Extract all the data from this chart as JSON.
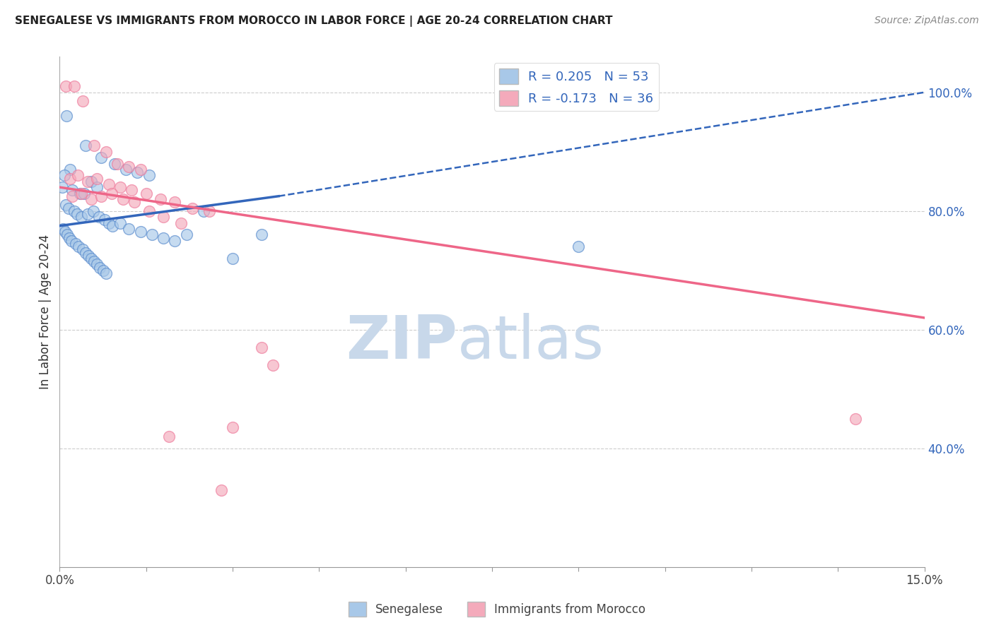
{
  "title": "SENEGALESE VS IMMIGRANTS FROM MOROCCO IN LABOR FORCE | AGE 20-24 CORRELATION CHART",
  "source": "Source: ZipAtlas.com",
  "ylabel": "In Labor Force | Age 20-24",
  "xlim": [
    0.0,
    15.0
  ],
  "ylim": [
    20.0,
    106.0
  ],
  "y_ticks_right": [
    40.0,
    60.0,
    80.0,
    100.0
  ],
  "y_tick_labels_right": [
    "40.0%",
    "60.0%",
    "80.0%",
    "100.0%"
  ],
  "x_ticks": [
    0.0,
    1.5,
    3.0,
    4.5,
    6.0,
    7.5,
    9.0,
    10.5,
    12.0,
    13.5,
    15.0
  ],
  "legend_r1": "R = 0.205",
  "legend_n1": "N = 53",
  "legend_r2": "R = -0.173",
  "legend_n2": "N = 36",
  "blue_color": "#A8C8E8",
  "pink_color": "#F4AABB",
  "blue_edge_color": "#5588CC",
  "pink_edge_color": "#EE7799",
  "blue_line_color": "#3366BB",
  "pink_line_color": "#EE6688",
  "watermark_zip": "ZIP",
  "watermark_atlas": "atlas",
  "watermark_color": "#C8D8EA",
  "blue_scatter_x": [
    0.12,
    0.45,
    0.18,
    0.08,
    0.05,
    0.22,
    0.35,
    0.55,
    0.65,
    0.42,
    0.72,
    0.95,
    1.15,
    1.35,
    1.55,
    0.1,
    0.15,
    0.25,
    0.3,
    0.38,
    0.48,
    0.58,
    0.68,
    0.78,
    0.85,
    0.92,
    1.05,
    1.2,
    1.4,
    1.6,
    1.8,
    2.0,
    2.2,
    2.5,
    0.06,
    0.09,
    0.13,
    0.17,
    0.21,
    0.28,
    0.33,
    0.4,
    0.45,
    0.5,
    0.55,
    0.6,
    0.65,
    0.7,
    0.75,
    0.8,
    3.0,
    3.5,
    9.0
  ],
  "blue_scatter_y": [
    96.0,
    91.0,
    87.0,
    86.0,
    84.0,
    83.5,
    83.0,
    85.0,
    84.0,
    83.0,
    89.0,
    88.0,
    87.0,
    86.5,
    86.0,
    81.0,
    80.5,
    80.0,
    79.5,
    79.0,
    79.5,
    80.0,
    79.0,
    78.5,
    78.0,
    77.5,
    78.0,
    77.0,
    76.5,
    76.0,
    75.5,
    75.0,
    76.0,
    80.0,
    77.0,
    76.5,
    76.0,
    75.5,
    75.0,
    74.5,
    74.0,
    73.5,
    73.0,
    72.5,
    72.0,
    71.5,
    71.0,
    70.5,
    70.0,
    69.5,
    72.0,
    76.0,
    74.0
  ],
  "pink_scatter_x": [
    0.1,
    0.25,
    0.4,
    0.6,
    0.8,
    1.0,
    1.2,
    1.4,
    0.18,
    0.32,
    0.48,
    0.65,
    0.85,
    1.05,
    1.25,
    1.5,
    1.75,
    2.0,
    2.3,
    2.6,
    0.22,
    0.38,
    0.55,
    0.72,
    0.9,
    1.1,
    1.3,
    1.55,
    1.8,
    2.1,
    3.5,
    3.7,
    13.8,
    3.0,
    1.9,
    2.8
  ],
  "pink_scatter_y": [
    101.0,
    101.0,
    98.5,
    91.0,
    90.0,
    88.0,
    87.5,
    87.0,
    85.5,
    86.0,
    85.0,
    85.5,
    84.5,
    84.0,
    83.5,
    83.0,
    82.0,
    81.5,
    80.5,
    80.0,
    82.5,
    83.0,
    82.0,
    82.5,
    83.0,
    82.0,
    81.5,
    80.0,
    79.0,
    78.0,
    57.0,
    54.0,
    45.0,
    43.5,
    42.0,
    33.0
  ],
  "blue_trend_x0": 0.0,
  "blue_trend_y0": 77.5,
  "blue_trend_solid_x1": 3.8,
  "blue_trend_solid_y1": 82.5,
  "blue_trend_dash_x1": 15.0,
  "blue_trend_dash_y1": 100.0,
  "pink_trend_x0": 0.0,
  "pink_trend_y0": 84.0,
  "pink_trend_x1": 15.0,
  "pink_trend_y1": 62.0
}
